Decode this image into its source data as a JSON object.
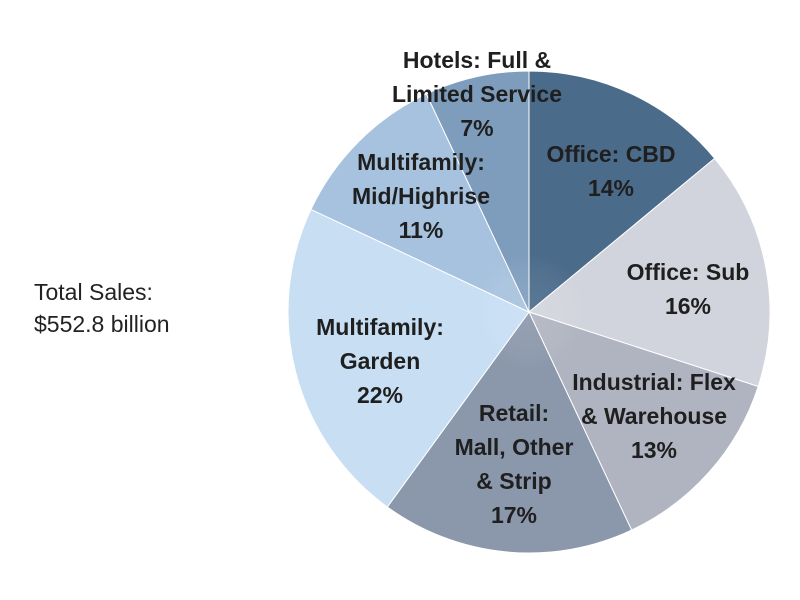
{
  "total": {
    "label": "Total Sales:",
    "value": "$552.8 billion"
  },
  "chart_data": {
    "type": "pie",
    "slices": [
      {
        "label": [
          "Office: CBD"
        ],
        "value": 14,
        "percent_label": "14%",
        "color": "#4a6b8a"
      },
      {
        "label": [
          "Office: Sub"
        ],
        "value": 16,
        "percent_label": "16%",
        "color": "#d2d4dd"
      },
      {
        "label": [
          "Industrial: Flex",
          "& Warehouse"
        ],
        "value": 13,
        "percent_label": "13%",
        "color": "#afb4c0"
      },
      {
        "label": [
          "Retail:",
          "Mall, Other",
          "& Strip"
        ],
        "value": 17,
        "percent_label": "17%",
        "color": "#8b97ab"
      },
      {
        "label": [
          "Multifamily:",
          "Garden"
        ],
        "value": 22,
        "percent_label": "22%",
        "color": "#c7def3"
      },
      {
        "label": [
          "Multifamily:",
          "Mid/Highrise"
        ],
        "value": 11,
        "percent_label": "11%",
        "color": "#a7c2de"
      },
      {
        "label": [
          "Hotels: Full &",
          "Limited Service"
        ],
        "value": 7,
        "percent_label": "7%",
        "color": "#7e9dbd"
      }
    ]
  }
}
